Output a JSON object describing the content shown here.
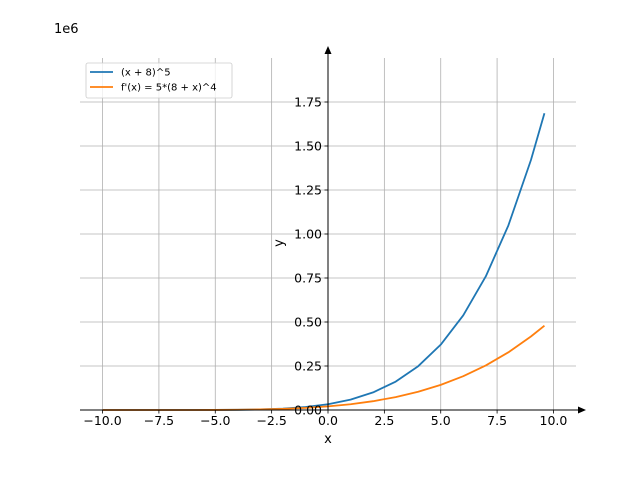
{
  "chart_data": {
    "type": "line",
    "xlabel": "x",
    "ylabel": "y",
    "offset_text": "1e6",
    "xlim": [
      -11,
      11
    ],
    "ylim": [
      0,
      2.0
    ],
    "y_scale_factor": 1000000,
    "grid": true,
    "legend_placement": "upper-left",
    "x_ticks": [
      -10,
      -7.5,
      -5,
      -2.5,
      0,
      2.5,
      5,
      7.5,
      10
    ],
    "x_tick_labels": [
      "−10.0",
      "−7.5",
      "−5.0",
      "−2.5",
      "0.0",
      "2.5",
      "5.0",
      "7.5",
      "10.0"
    ],
    "y_ticks": [
      0,
      0.25,
      0.5,
      0.75,
      1.0,
      1.25,
      1.5,
      1.75
    ],
    "y_tick_labels": [
      "0.00",
      "0.25",
      "0.50",
      "0.75",
      "1.00",
      "1.25",
      "1.50",
      "1.75"
    ],
    "series": [
      {
        "name": "(x + 8)^5",
        "color": "#1f77b4",
        "x": [
          -10,
          -9,
          -8,
          -7,
          -6,
          -5,
          -4,
          -3,
          -2,
          -1,
          0,
          1,
          2,
          3,
          4,
          5,
          6,
          7,
          8,
          9,
          9.6
        ],
        "y": [
          -3.2e-05,
          -1e-06,
          0,
          1e-06,
          3.2e-05,
          0.000243,
          0.001024,
          0.003125,
          0.007776,
          0.016807,
          0.032768,
          0.059049,
          0.1,
          0.161051,
          0.248832,
          0.371293,
          0.537824,
          0.759375,
          1.048576,
          1.419857,
          1.686221
        ]
      },
      {
        "name": "f'(x) = 5*(8 + x)^4",
        "color": "#ff7f0e",
        "x": [
          -10,
          -9,
          -8,
          -7,
          -6,
          -5,
          -4,
          -3,
          -2,
          -1,
          0,
          1,
          2,
          3,
          4,
          5,
          6,
          7,
          8,
          9,
          9.6
        ],
        "y": [
          8e-05,
          5e-06,
          0,
          5e-06,
          8e-05,
          0.000405,
          0.00128,
          0.003125,
          0.00648,
          0.012005,
          0.02048,
          0.032805,
          0.05,
          0.073205,
          0.10368,
          0.142805,
          0.19208,
          0.253125,
          0.32768,
          0.417605,
          0.47904
        ]
      }
    ]
  }
}
